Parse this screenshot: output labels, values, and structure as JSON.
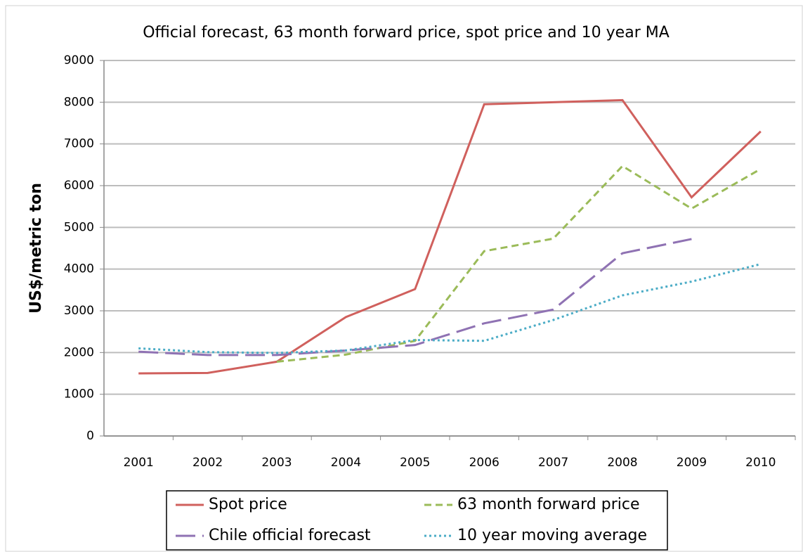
{
  "chart_data": {
    "type": "line",
    "title": "Official forecast, 63 month forward price, spot price and 10 year MA",
    "y_label": "US$/metric ton",
    "categories": [
      "2001",
      "2002",
      "2003",
      "2004",
      "2005",
      "2006",
      "2007",
      "2008",
      "2009",
      "2010"
    ],
    "series": [
      {
        "name": "Spot price",
        "color": "#d0605d",
        "dash": "solid",
        "values": [
          1500,
          1510,
          1780,
          2850,
          3520,
          7950,
          8000,
          8050,
          5720,
          7300
        ]
      },
      {
        "name": "63 month forward price",
        "color": "#9bbb59",
        "dash": "dashed",
        "values": [
          null,
          null,
          1780,
          1950,
          2280,
          4430,
          4730,
          6470,
          5450,
          6400
        ]
      },
      {
        "name": "Chile official forecast",
        "color": "#8f72b3",
        "dash": "longdash",
        "values": [
          2020,
          1940,
          1940,
          2050,
          2180,
          2700,
          3030,
          4380,
          4720,
          null
        ]
      },
      {
        "name": "10 year moving average",
        "color": "#4bacc6",
        "dash": "dotted",
        "values": [
          2100,
          2010,
          1990,
          2050,
          2300,
          2280,
          2780,
          3370,
          3700,
          4120
        ]
      }
    ],
    "ylim": [
      0,
      9000
    ],
    "yticks": [
      0,
      1000,
      2000,
      3000,
      4000,
      5000,
      6000,
      7000,
      8000,
      9000
    ],
    "grid": true,
    "legend": "bottom"
  }
}
